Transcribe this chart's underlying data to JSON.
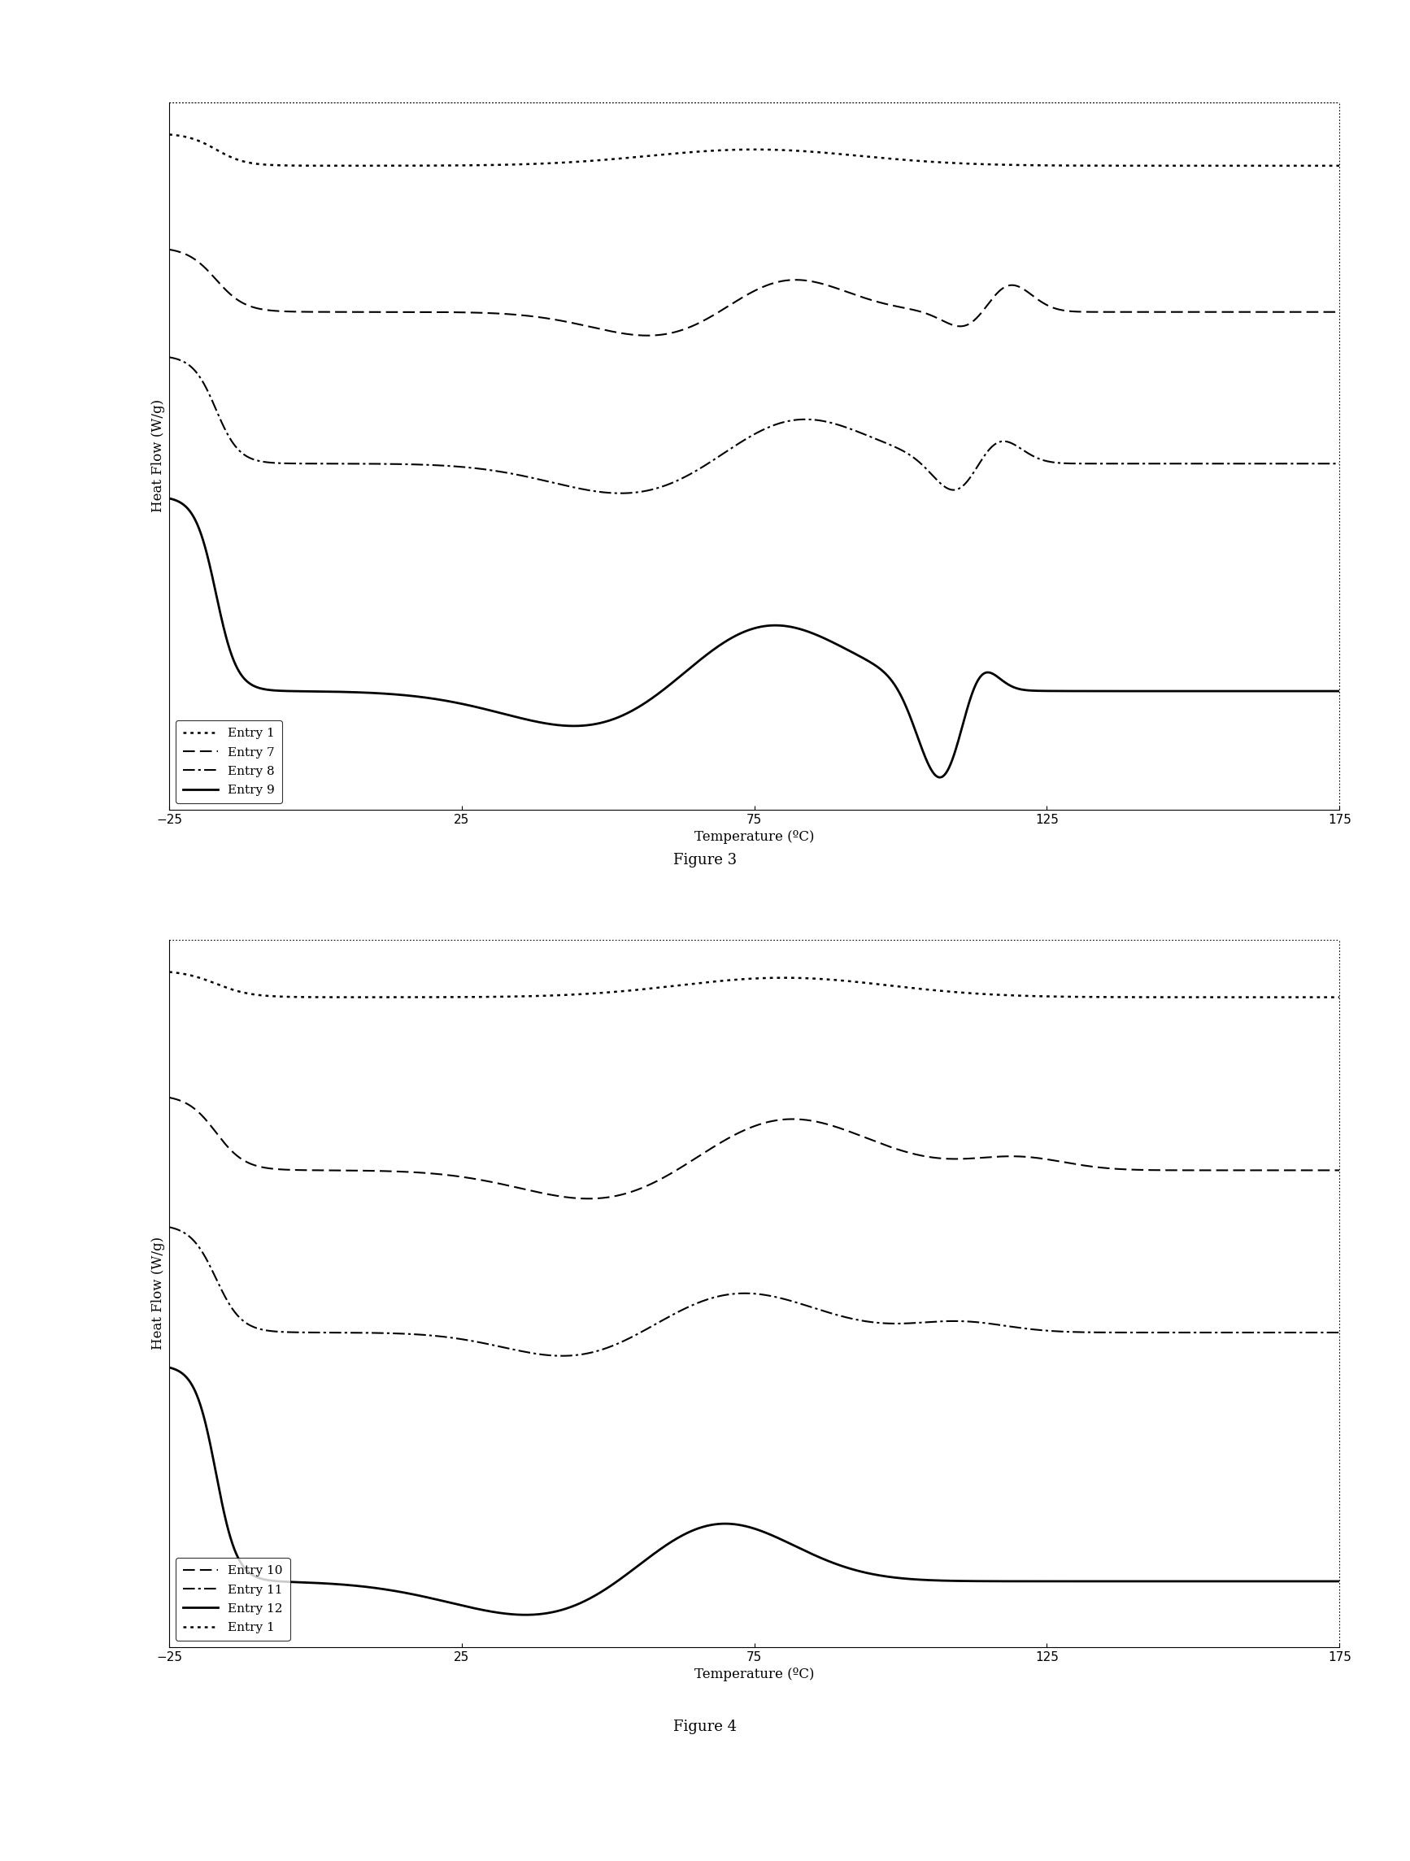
{
  "fig3": {
    "title": "Figure 3",
    "xlabel": "Temperature (ºC)",
    "ylabel": "Heat Flow (W/g)",
    "xlim": [
      -25,
      175
    ],
    "xticks": [
      -25,
      25,
      75,
      125,
      175
    ],
    "entries": [
      {
        "label": "Entry 1",
        "linestyle": "dotted",
        "linewidth": 1.8
      },
      {
        "label": "Entry 7",
        "linestyle": "dashed",
        "linewidth": 1.5
      },
      {
        "label": "Entry 8",
        "linestyle": "dashdot",
        "linewidth": 1.5
      },
      {
        "label": "Entry 9",
        "linestyle": "solid",
        "linewidth": 2.0
      }
    ]
  },
  "fig4": {
    "title": "Figure 4",
    "xlabel": "Temperature (ºC)",
    "ylabel": "Heat Flow (W/g)",
    "xlim": [
      -25,
      175
    ],
    "xticks": [
      -25,
      25,
      75,
      125,
      175
    ],
    "entries": [
      {
        "label": "Entry 10",
        "linestyle": "dashed",
        "linewidth": 1.5
      },
      {
        "label": "Entry 11",
        "linestyle": "dashdot",
        "linewidth": 1.5
      },
      {
        "label": "Entry 12",
        "linestyle": "solid",
        "linewidth": 2.0
      },
      {
        "label": "Entry 1",
        "linestyle": "dotted",
        "linewidth": 1.8
      }
    ]
  },
  "color": "#000000",
  "background": "#ffffff",
  "fig_title_fontsize": 13,
  "axis_label_fontsize": 12,
  "tick_fontsize": 11,
  "legend_fontsize": 11
}
